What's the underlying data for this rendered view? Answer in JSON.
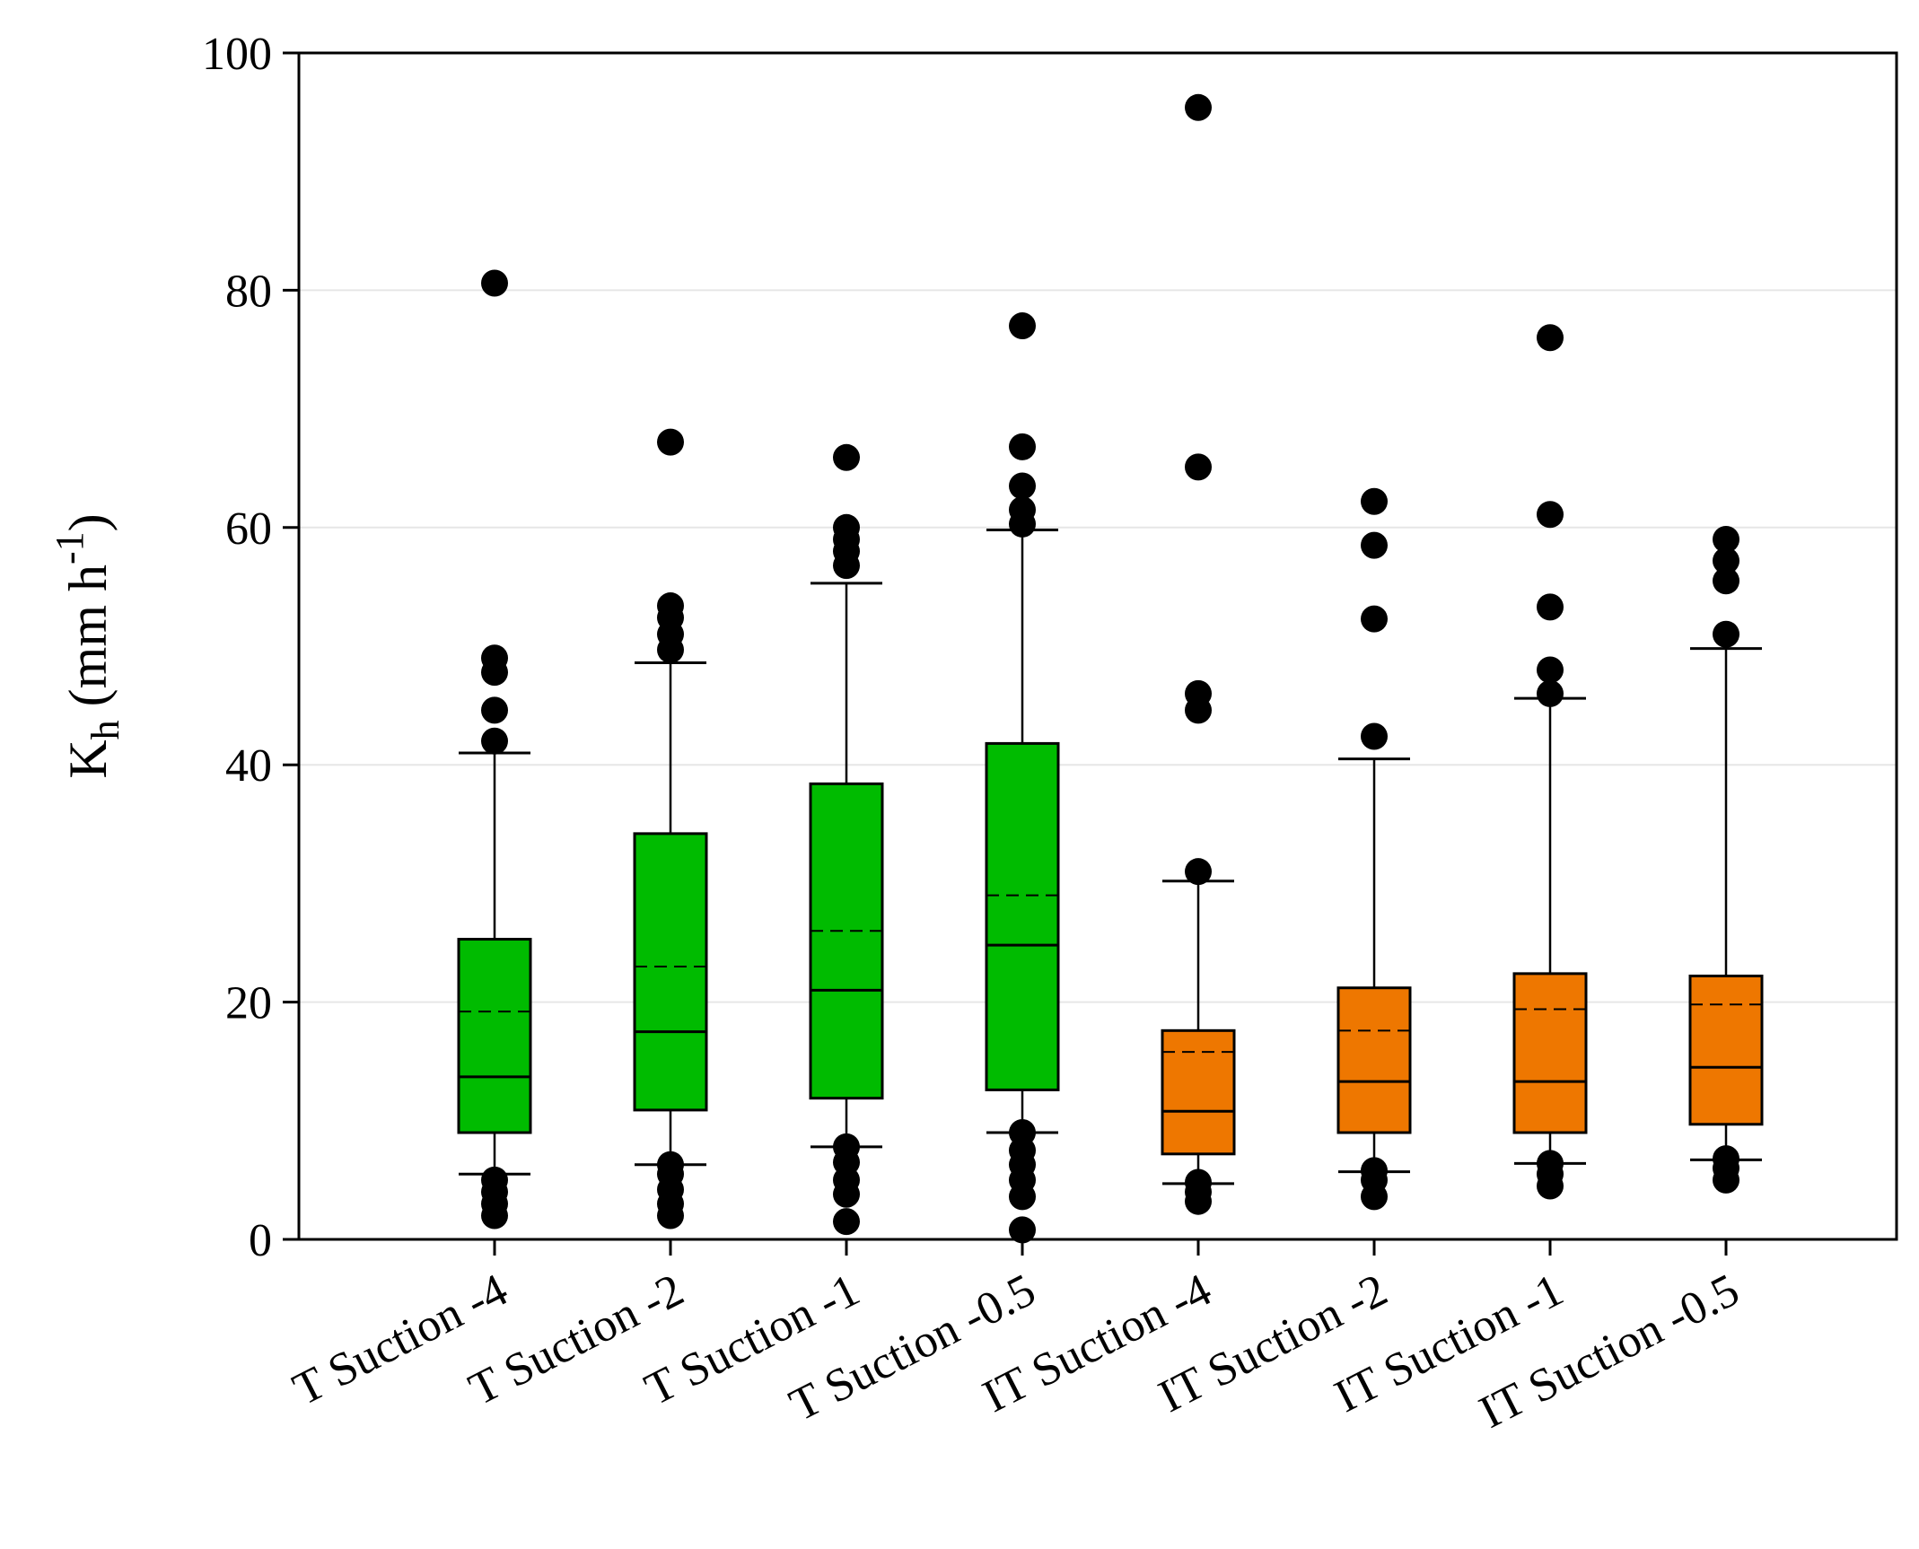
{
  "chart_data": {
    "type": "box",
    "title": "",
    "xlabel": "",
    "ylabel": {
      "symbol": "K",
      "subscript": "h",
      "units_open": " (mm h",
      "superscript": "-1",
      "units_close": ")"
    },
    "ylim": [
      0,
      100
    ],
    "yticks": [
      0,
      20,
      40,
      60,
      80,
      100
    ],
    "grid": "horizontal",
    "colors": {
      "T": "#00bb00",
      "IT": "#ee7700",
      "grid": "#e6e6e6"
    },
    "categories": [
      "T Suction -4",
      "T Suction -2",
      "T Suction -1",
      "T Suction -0.5",
      "IT Suction -4",
      "IT Suction -2",
      "IT Suction -1",
      "IT Suction -0.5"
    ],
    "boxes": [
      {
        "label": "T Suction -4",
        "group": "T",
        "whisker_low": 5.5,
        "q1": 9.0,
        "median": 13.7,
        "mean": 19.2,
        "q3": 25.3,
        "whisker_high": 41.0,
        "outliers": [
          2.0,
          3.0,
          4.0,
          5.0,
          42.0,
          44.6,
          47.8,
          49.0,
          80.6
        ]
      },
      {
        "label": "T Suction -2",
        "group": "T",
        "whisker_low": 6.3,
        "q1": 10.9,
        "median": 17.5,
        "mean": 23.0,
        "q3": 34.2,
        "whisker_high": 48.6,
        "outliers": [
          2.0,
          3.0,
          4.2,
          5.5,
          6.3,
          49.7,
          51.0,
          52.4,
          53.4,
          67.2
        ]
      },
      {
        "label": "T Suction -1",
        "group": "T",
        "whisker_low": 7.8,
        "q1": 11.9,
        "median": 21.0,
        "mean": 26.0,
        "q3": 38.4,
        "whisker_high": 55.3,
        "outliers": [
          1.5,
          3.8,
          5.0,
          6.5,
          7.8,
          56.8,
          58.0,
          59.0,
          60.0,
          65.9
        ]
      },
      {
        "label": "T Suction -0.5",
        "group": "T",
        "whisker_low": 9.0,
        "q1": 12.6,
        "median": 24.8,
        "mean": 29.0,
        "q3": 41.8,
        "whisker_high": 59.8,
        "outliers": [
          0.8,
          3.6,
          5.0,
          6.3,
          7.5,
          9.0,
          60.3,
          61.5,
          63.5,
          66.8,
          77.0
        ]
      },
      {
        "label": "IT Suction -4",
        "group": "IT",
        "whisker_low": 4.7,
        "q1": 7.2,
        "median": 10.8,
        "mean": 15.8,
        "q3": 17.6,
        "whisker_high": 30.2,
        "outliers": [
          3.2,
          4.0,
          4.8,
          31.0,
          44.6,
          46.0,
          65.1,
          95.4
        ]
      },
      {
        "label": "IT Suction -2",
        "group": "IT",
        "whisker_low": 5.7,
        "q1": 9.0,
        "median": 13.3,
        "mean": 17.6,
        "q3": 21.2,
        "whisker_high": 40.5,
        "outliers": [
          3.6,
          5.0,
          5.8,
          42.4,
          52.3,
          58.5,
          62.2
        ]
      },
      {
        "label": "IT Suction -1",
        "group": "IT",
        "whisker_low": 6.4,
        "q1": 9.0,
        "median": 13.3,
        "mean": 19.4,
        "q3": 22.4,
        "whisker_high": 45.6,
        "outliers": [
          4.5,
          5.5,
          6.4,
          46.0,
          48.0,
          53.3,
          61.1,
          76.0
        ]
      },
      {
        "label": "IT Suction -0.5",
        "group": "IT",
        "whisker_low": 6.7,
        "q1": 9.7,
        "median": 14.5,
        "mean": 19.8,
        "q3": 22.2,
        "whisker_high": 49.8,
        "outliers": [
          5.0,
          6.0,
          6.8,
          51.0,
          55.5,
          57.2,
          59.0
        ]
      }
    ]
  }
}
